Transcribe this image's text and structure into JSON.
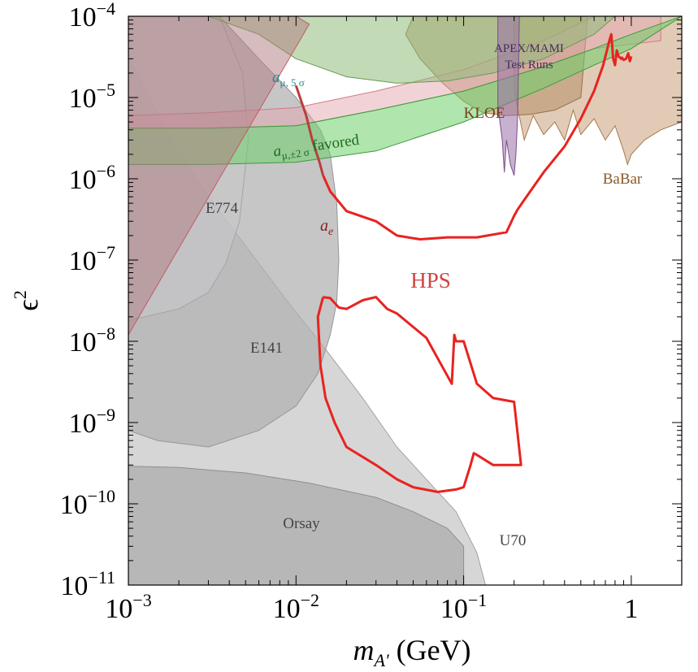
{
  "chart_data": {
    "type": "line",
    "title": "",
    "xlabel": "m_A' (GeV)",
    "ylabel": "ε²",
    "xscale": "log",
    "yscale": "log",
    "xlim": [
      0.001,
      2
    ],
    "ylim": [
      1e-11,
      0.0001
    ],
    "x_ticks": [
      {
        "value": 0.001,
        "base": "10",
        "exp": "−3"
      },
      {
        "value": 0.01,
        "base": "10",
        "exp": "−2"
      },
      {
        "value": 0.1,
        "base": "10",
        "exp": "−1"
      },
      {
        "value": 1,
        "base": "1",
        "exp": ""
      }
    ],
    "y_ticks": [
      {
        "value": 0.0001,
        "base": "10",
        "exp": "−4"
      },
      {
        "value": 1e-05,
        "base": "10",
        "exp": "−5"
      },
      {
        "value": 1e-06,
        "base": "10",
        "exp": "−6"
      },
      {
        "value": 1e-07,
        "base": "10",
        "exp": "−7"
      },
      {
        "value": 1e-08,
        "base": "10",
        "exp": "−8"
      },
      {
        "value": 1e-09,
        "base": "10",
        "exp": "−9"
      },
      {
        "value": 1e-10,
        "base": "10",
        "exp": "−10"
      },
      {
        "value": 1e-11,
        "base": "10",
        "exp": "−11"
      }
    ],
    "axis_titles": {
      "x_main": "m",
      "x_sub": "A'",
      "x_unit": " (GeV)",
      "y_main": "ϵ",
      "y_sup": "2"
    },
    "regions": [
      {
        "name": "U70",
        "fill": "#c4c4c6",
        "stroke": "#a2a2a4",
        "opacity": 0.7,
        "points": [
          [
            0.001,
            1e-11
          ],
          [
            0.135,
            1e-11
          ],
          [
            0.12,
            2.5e-11
          ],
          [
            0.09,
            8e-11
          ],
          [
            0.06,
            2e-10
          ],
          [
            0.04,
            5e-10
          ],
          [
            0.025,
            2e-09
          ],
          [
            0.015,
            8e-09
          ],
          [
            0.009,
            3e-08
          ],
          [
            0.005,
            1.5e-07
          ],
          [
            0.003,
            6e-07
          ],
          [
            0.0018,
            3e-06
          ],
          [
            0.0012,
            1.5e-05
          ],
          [
            0.001,
            3e-05
          ]
        ]
      },
      {
        "name": "E141",
        "fill": "#b0b0b2",
        "stroke": "#969698",
        "opacity": 0.72,
        "points": [
          [
            0.001,
            8e-10
          ],
          [
            0.001,
            0.0002
          ],
          [
            0.0035,
            0.0001
          ],
          [
            0.006,
            3e-05
          ],
          [
            0.01,
            1e-05
          ],
          [
            0.014,
            4e-06
          ],
          [
            0.016,
            2e-06
          ],
          [
            0.0175,
            5e-07
          ],
          [
            0.018,
            1e-07
          ],
          [
            0.0175,
            3e-08
          ],
          [
            0.016,
            1.2e-08
          ],
          [
            0.0135,
            4e-09
          ],
          [
            0.01,
            1.6e-09
          ],
          [
            0.006,
            8e-10
          ],
          [
            0.003,
            5e-10
          ],
          [
            0.0015,
            6e-10
          ]
        ]
      },
      {
        "name": "Orsay",
        "fill": "#aaaaac",
        "stroke": "#8e8e90",
        "opacity": 0.72,
        "points": [
          [
            0.001,
            1e-11
          ],
          [
            0.1,
            1e-11
          ],
          [
            0.1,
            3e-11
          ],
          [
            0.08,
            5e-11
          ],
          [
            0.05,
            8e-11
          ],
          [
            0.03,
            1.2e-10
          ],
          [
            0.012,
            1.8e-10
          ],
          [
            0.005,
            2.4e-10
          ],
          [
            0.002,
            2.8e-10
          ],
          [
            0.001,
            2.9e-10
          ]
        ]
      },
      {
        "name": "E774",
        "fill": "#c8c8ca",
        "stroke": "#a4a4a6",
        "opacity": 0.65,
        "points": [
          [
            0.001,
            0.0002
          ],
          [
            0.0025,
            0.0002
          ],
          [
            0.0035,
            0.0001
          ],
          [
            0.0048,
            2e-05
          ],
          [
            0.0052,
            3e-06
          ],
          [
            0.0046,
            3e-07
          ],
          [
            0.0038,
            9e-08
          ],
          [
            0.003,
            4e-08
          ],
          [
            0.002,
            2.5e-08
          ],
          [
            0.001,
            1.8e-08
          ]
        ]
      },
      {
        "name": "BaBar",
        "fill": "#c9a17b",
        "stroke": "#a57a4c",
        "opacity": 0.55,
        "points": [
          [
            0.2,
            0.0001
          ],
          [
            0.2,
            1.2e-05
          ],
          [
            0.23,
            3e-06
          ],
          [
            0.26,
            6e-06
          ],
          [
            0.3,
            3.5e-06
          ],
          [
            0.35,
            5e-06
          ],
          [
            0.4,
            3e-06
          ],
          [
            0.45,
            7e-06
          ],
          [
            0.5,
            3.5e-06
          ],
          [
            0.6,
            5.5e-06
          ],
          [
            0.7,
            3e-06
          ],
          [
            0.8,
            4.5e-06
          ],
          [
            0.9,
            2.2e-06
          ],
          [
            0.95,
            1.5e-06
          ],
          [
            1,
            2e-06
          ],
          [
            1.2,
            3e-06
          ],
          [
            1.5,
            4e-06
          ],
          [
            2,
            5e-06
          ],
          [
            2,
            0.0001
          ]
        ]
      },
      {
        "name": "KLOE",
        "fill": "#b9966f",
        "stroke": "#94704a",
        "opacity": 0.6,
        "points": [
          [
            0.05,
            0.0001
          ],
          [
            0.045,
            6e-05
          ],
          [
            0.055,
            3e-05
          ],
          [
            0.075,
            1.5e-05
          ],
          [
            0.1,
            9e-06
          ],
          [
            0.13,
            6.5e-06
          ],
          [
            0.18,
            6e-06
          ],
          [
            0.25,
            6.2e-06
          ],
          [
            0.35,
            7e-06
          ],
          [
            0.45,
            9e-06
          ],
          [
            0.5,
            1e-05
          ],
          [
            0.55,
            0.0001
          ]
        ]
      },
      {
        "name": "a_mu_5sigma",
        "fill": "#e4a8b0",
        "stroke": "#cf7a86",
        "opacity": 0.5,
        "points": [
          [
            0.001,
            6e-06
          ],
          [
            0.003,
            6.5e-06
          ],
          [
            0.01,
            7.5e-06
          ],
          [
            0.03,
            1.2e-05
          ],
          [
            0.1,
            2.2e-05
          ],
          [
            0.3,
            5e-05
          ],
          [
            0.6,
            0.0001
          ],
          [
            1.5,
            0.0001
          ],
          [
            1.5,
            5e-05
          ],
          [
            0.6,
            4e-05
          ],
          [
            0.3,
            2.4e-05
          ],
          [
            0.1,
            1.2e-05
          ],
          [
            0.03,
            7e-06
          ],
          [
            0.01,
            4.5e-06
          ],
          [
            0.003,
            4.2e-06
          ],
          [
            0.001,
            4.2e-06
          ]
        ]
      },
      {
        "name": "a_mu_favored",
        "fill": "#6fcf6b",
        "stroke": "#3d9a3a",
        "opacity": 0.55,
        "points": [
          [
            0.001,
            4.2e-06
          ],
          [
            0.003,
            4.2e-06
          ],
          [
            0.01,
            4.5e-06
          ],
          [
            0.03,
            7e-06
          ],
          [
            0.1,
            1.2e-05
          ],
          [
            0.3,
            2.4e-05
          ],
          [
            0.6,
            4e-05
          ],
          [
            1,
            6e-05
          ],
          [
            2,
            0.0001
          ],
          [
            1,
            4e-05
          ],
          [
            0.6,
            2.5e-05
          ],
          [
            0.3,
            1.3e-05
          ],
          [
            0.1,
            5e-06
          ],
          [
            0.03,
            2.2e-06
          ],
          [
            0.01,
            1.6e-06
          ],
          [
            0.003,
            1.5e-06
          ],
          [
            0.001,
            1.5e-06
          ]
        ]
      },
      {
        "name": "a_mu_upper",
        "fill": "#8fbe7a",
        "stroke": "#6a9a55",
        "opacity": 0.55,
        "points": [
          [
            0.0012,
            0.0001
          ],
          [
            0.003,
            0.0001
          ],
          [
            0.006,
            6e-05
          ],
          [
            0.01,
            3e-05
          ],
          [
            0.02,
            1.8e-05
          ],
          [
            0.04,
            1.5e-05
          ],
          [
            0.08,
            1.6e-05
          ],
          [
            0.15,
            2e-05
          ],
          [
            0.3,
            3e-05
          ],
          [
            0.6,
            6e-05
          ],
          [
            0.8,
            0.0001
          ]
        ]
      },
      {
        "name": "a_e",
        "fill": "#b07a80",
        "stroke": "#c55a64",
        "opacity": 0.5,
        "points": [
          [
            0.001,
            0.0001
          ],
          [
            0.01,
            0.0001
          ],
          [
            0.012,
            8e-05
          ],
          [
            0.001,
            1.2e-08
          ]
        ]
      },
      {
        "name": "APEX/MAMI",
        "fill": "#9a6fa8",
        "stroke": "#7a4f8a",
        "opacity": 0.55,
        "points": [
          [
            0.16,
            0.0001
          ],
          [
            0.16,
            8e-06
          ],
          [
            0.17,
            3e-06
          ],
          [
            0.175,
            1.2e-06
          ],
          [
            0.18,
            3e-06
          ],
          [
            0.19,
            1.5e-06
          ],
          [
            0.2,
            1.1e-06
          ],
          [
            0.205,
            2e-06
          ],
          [
            0.21,
            6e-06
          ],
          [
            0.215,
            0.0001
          ]
        ]
      }
    ],
    "series": [
      {
        "name": "HPS upper",
        "color": "#e8231f",
        "x": [
          0.0145,
          0.016,
          0.02,
          0.03,
          0.04,
          0.055,
          0.08,
          0.12,
          0.18,
          0.2,
          0.21,
          0.23,
          0.3,
          0.4,
          0.5,
          0.6,
          0.68,
          0.74,
          0.76,
          0.78,
          0.8,
          0.82,
          0.84,
          0.87,
          0.88,
          0.9,
          0.93,
          0.96,
          0.98,
          1.0
        ],
        "y": [
          1.1e-06,
          7e-07,
          4e-07,
          3e-07,
          2e-07,
          1.8e-07,
          1.9e-07,
          1.9e-07,
          2.2e-07,
          3.5e-07,
          4.2e-07,
          5.5e-07,
          1.2e-06,
          2.5e-06,
          5.5e-06,
          1.2e-05,
          2.5e-05,
          5e-05,
          6e-05,
          3e-05,
          2.5e-05,
          3.8e-05,
          3.2e-05,
          3e-05,
          3.1e-05,
          2.9e-05,
          3e-05,
          3.5e-05,
          2.8e-05,
          3.2e-05
        ]
      },
      {
        "name": "HPS lower",
        "color": "#e8231f",
        "x": [
          0.0145,
          0.016,
          0.018,
          0.02,
          0.025,
          0.03,
          0.035,
          0.04,
          0.06,
          0.085,
          0.088,
          0.09,
          0.1,
          0.12,
          0.15,
          0.2,
          0.22,
          0.2,
          0.15,
          0.12,
          0.115,
          0.11,
          0.1,
          0.09,
          0.07,
          0.05,
          0.04,
          0.03,
          0.02,
          0.017,
          0.015,
          0.014,
          0.0135,
          0.0145
        ],
        "y": [
          3.5e-08,
          3.4e-08,
          2.6e-08,
          2.5e-08,
          3.2e-08,
          3.5e-08,
          2.5e-08,
          2.2e-08,
          1.1e-08,
          3e-09,
          1.2e-08,
          1e-08,
          1e-08,
          3e-09,
          2e-09,
          1.8e-09,
          3e-10,
          3e-10,
          3e-10,
          4e-10,
          4.2e-10,
          3e-10,
          1.6e-10,
          1.5e-10,
          1.4e-10,
          1.6e-10,
          2e-10,
          3e-10,
          5e-10,
          1e-09,
          2e-09,
          5e-09,
          2e-08,
          3.5e-08
        ]
      },
      {
        "name": "a_mu_5sigma line",
        "color": "#b8403a",
        "x": [
          0.01,
          0.0115,
          0.0125,
          0.0138,
          0.0145
        ],
        "y": [
          1.4e-05,
          6e-06,
          3e-06,
          1.6e-06,
          1.1e-06
        ]
      }
    ],
    "labels": {
      "hps": "HPS",
      "apex_l1": "APEX/MAMI",
      "apex_l2": "Test Runs",
      "kloe": "KLOE",
      "babar": "BaBar",
      "e774": "E774",
      "e141": "E141",
      "orsay": "Orsay",
      "u70": "U70",
      "ae_main": "a",
      "ae_sub": "e",
      "amu5_main": "a",
      "amu5_sub": "μ, 5 σ",
      "amu2_main": "a",
      "amu2_sub": "μ,±2 σ",
      "amu2_tail": " favored"
    },
    "colors": {
      "hps": "#e8231f",
      "hps_label": "#d0453f",
      "apex": "#4a2a5e",
      "kloe": "#7a3c12",
      "babar": "#8a5a2a",
      "gray_label": "#444444",
      "ae": "#8a1e1e",
      "amu5": "#2a8a8a",
      "amu2": "#1e6a1e"
    }
  }
}
